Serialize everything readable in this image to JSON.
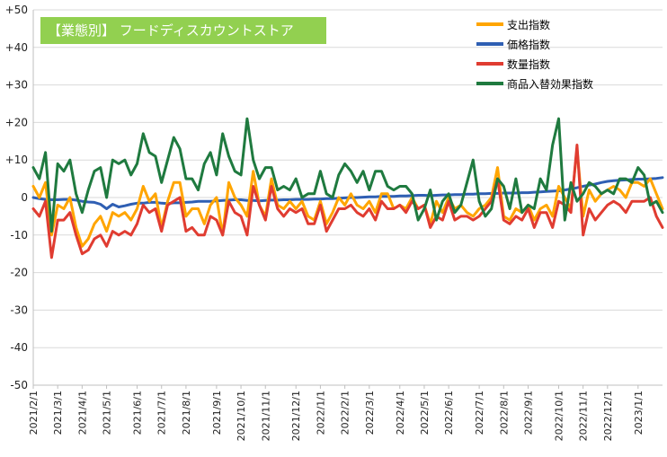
{
  "chart_data": {
    "type": "line",
    "title": "【業態別】 フードディスカウントストア",
    "ylim": [
      -50,
      50
    ],
    "yticks": [
      50,
      40,
      30,
      20,
      10,
      0,
      -10,
      -20,
      -30,
      -40,
      -50
    ],
    "ytick_labels": [
      "+50",
      "+40",
      "+30",
      "+20",
      "+10",
      "0",
      "-10",
      "-20",
      "-30",
      "-40",
      "-50"
    ],
    "x_tick_labels": [
      "2021/2/1",
      "2021/3/1",
      "2021/4/1",
      "2021/5/1",
      "2021/6/1",
      "2021/7/1",
      "2021/8/1",
      "2021/9/1",
      "2021/10/1",
      "2021/11/1",
      "2021/12/1",
      "2022/1/1",
      "2022/2/1",
      "2022/3/1",
      "2022/4/1",
      "2022/5/1",
      "2022/6/1",
      "2022/7/1",
      "2022/8/1",
      "2022/9/1",
      "2022/10/1",
      "2022/11/1",
      "2022/12/1",
      "2023/1/1"
    ],
    "x_tick_index": [
      0,
      4,
      8,
      12,
      17,
      21,
      25,
      30,
      34,
      38,
      43,
      47,
      51,
      55,
      60,
      64,
      68,
      73,
      77,
      81,
      86,
      90,
      94,
      99
    ],
    "n_points": 104,
    "grid": true,
    "legend_position": "top-right",
    "series": [
      {
        "name": "支出指数",
        "color": "#ffa500",
        "values": [
          3,
          0,
          4,
          -10,
          -2,
          -3,
          0,
          -8,
          -13,
          -11,
          -7,
          -5,
          -9,
          -4,
          -5,
          -4,
          -6,
          -3,
          3,
          -1,
          1,
          -8,
          -1,
          4,
          4,
          -5,
          -3,
          -3,
          -7,
          -2,
          0,
          -10,
          4,
          0,
          -2,
          -5,
          7,
          -2,
          -5,
          5,
          -2,
          -3,
          -1,
          -3,
          -1,
          -5,
          -6,
          -1,
          -7,
          -4,
          0,
          -2,
          1,
          -2,
          -3,
          -1,
          -4,
          1,
          1,
          -3,
          -2,
          -3,
          0,
          -3,
          -2,
          -7,
          -1,
          -4,
          0,
          -3,
          -2,
          -4,
          -5,
          -3,
          -2,
          0,
          8,
          -5,
          -6,
          -3,
          -4,
          -2,
          -6,
          -3,
          -2,
          -5,
          3,
          0,
          -3,
          13,
          -5,
          2,
          -1,
          1,
          2,
          3,
          2,
          0,
          4,
          4,
          3,
          5,
          1,
          -3
        ]
      },
      {
        "name": "価格指数",
        "color": "#2f5fb3",
        "values": [
          0,
          -0.3,
          -0.5,
          -0.6,
          -0.6,
          -0.5,
          -0.5,
          -0.7,
          -1,
          -1.2,
          -1.3,
          -1.8,
          -3,
          -1.8,
          -2.5,
          -2.2,
          -1.8,
          -1.5,
          -1.5,
          -1.3,
          -1.3,
          -1.5,
          -1.6,
          -1.4,
          -1.4,
          -1.3,
          -1.2,
          -1,
          -1,
          -1,
          -0.9,
          -0.8,
          -0.7,
          -0.6,
          -0.6,
          -0.8,
          -0.8,
          -0.9,
          -0.8,
          -0.7,
          -0.7,
          -0.6,
          -0.6,
          -0.5,
          -0.5,
          -0.5,
          -0.4,
          -0.4,
          -0.3,
          -0.3,
          -0.2,
          -0.1,
          0,
          0,
          0.1,
          0.2,
          0.2,
          0.3,
          0.3,
          0.3,
          0.4,
          0.4,
          0.5,
          0.6,
          0.6,
          0.5,
          0.6,
          0.7,
          0.7,
          0.8,
          0.8,
          0.9,
          0.9,
          1,
          1,
          1.1,
          1.1,
          1.2,
          1.2,
          1.2,
          1.3,
          1.3,
          1.4,
          1.5,
          1.6,
          1.7,
          1.8,
          2,
          2.3,
          2.6,
          3,
          3.3,
          3.6,
          4,
          4.3,
          4.5,
          4.6,
          4.7,
          4.8,
          4.9,
          4.9,
          5,
          5.1,
          5.3
        ]
      },
      {
        "name": "数量指数",
        "color": "#e03c31",
        "values": [
          -3,
          -5,
          -1,
          -16,
          -6,
          -6,
          -4,
          -10,
          -15,
          -14,
          -11,
          -10,
          -13,
          -9,
          -10,
          -9,
          -10,
          -7,
          -2,
          -4,
          -3,
          -9,
          -2,
          -1,
          0,
          -9,
          -8,
          -10,
          -10,
          -5,
          -6,
          -10,
          -1,
          -4,
          -5,
          -10,
          3,
          -2,
          -6,
          3,
          -3,
          -5,
          -3,
          -4,
          -3,
          -7,
          -7,
          -2,
          -9,
          -6,
          -3,
          -3,
          -2,
          -4,
          -5,
          -3,
          -6,
          -1,
          -3,
          -3,
          -2,
          -4,
          -1,
          -3,
          -2,
          -8,
          -5,
          -6,
          -1,
          -6,
          -5,
          -5,
          -6,
          -5,
          -3,
          -1,
          5,
          -6,
          -7,
          -5,
          -6,
          -3,
          -8,
          -4,
          -4,
          -8,
          -1,
          -2,
          -4,
          14,
          -10,
          -3,
          -6,
          -4,
          -2,
          -1,
          -2,
          -4,
          -1,
          -1,
          -1,
          0,
          -5,
          -8
        ]
      },
      {
        "name": "商品入替効果指数",
        "color": "#1f7a3f",
        "values": [
          8,
          5,
          12,
          -9,
          9,
          7,
          10,
          1,
          -4,
          2,
          7,
          8,
          0,
          10,
          9,
          10,
          6,
          9,
          17,
          12,
          11,
          4,
          10,
          16,
          13,
          5,
          5,
          2,
          9,
          12,
          6,
          17,
          11,
          7,
          6,
          21,
          10,
          5,
          8,
          8,
          2,
          3,
          2,
          5,
          0,
          1,
          1,
          7,
          1,
          0,
          6,
          9,
          7,
          4,
          7,
          2,
          7,
          7,
          3,
          2,
          3,
          3,
          1,
          -6,
          -3,
          2,
          -6,
          -1,
          1,
          -4,
          -2,
          4,
          10,
          -1,
          -5,
          -3,
          5,
          3,
          -3,
          5,
          -4,
          -2,
          -3,
          5,
          2,
          14,
          21,
          -6,
          4,
          -1,
          1,
          4,
          3,
          1,
          2,
          1,
          5,
          5,
          4,
          8,
          6,
          -2,
          -1,
          -4
        ]
      }
    ]
  }
}
